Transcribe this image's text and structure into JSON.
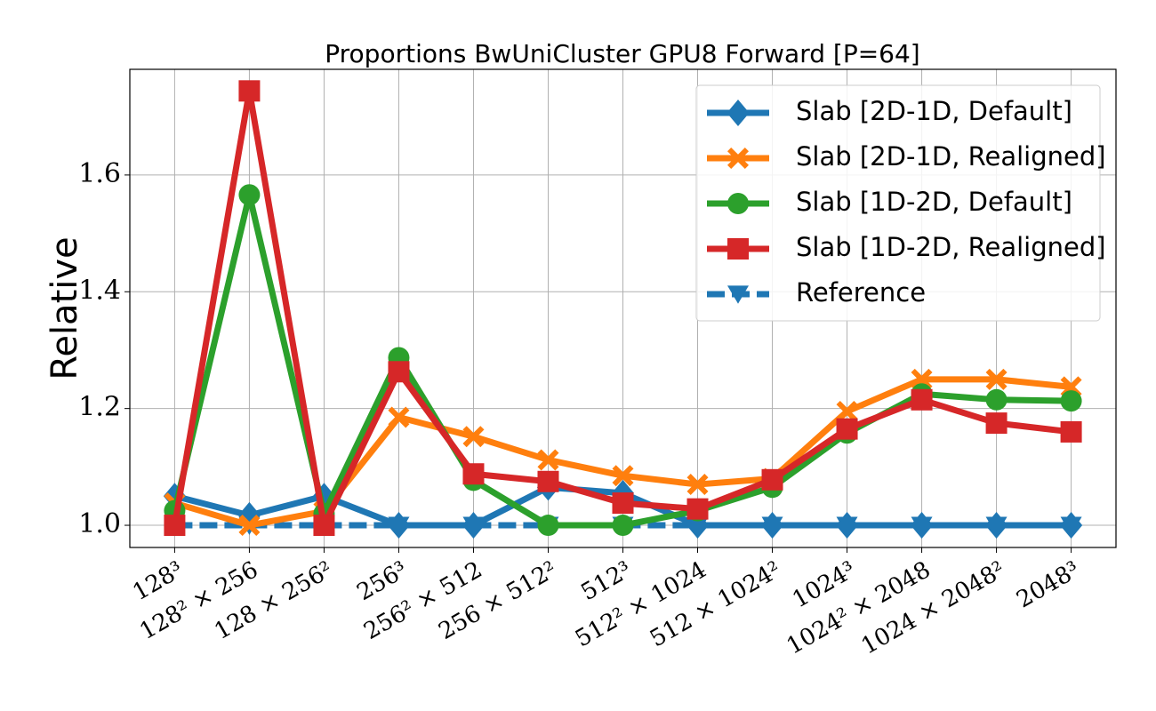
{
  "chart_data": {
    "type": "line",
    "title": "Proportions BwUniCluster GPU8 Forward [P=64]",
    "ylabel": "Relative",
    "categories": [
      "128³",
      "128² × 256",
      "128 × 256²",
      "256³",
      "256² × 512",
      "256 × 512²",
      "512³",
      "512² × 1024",
      "512 × 1024²",
      "1024³",
      "1024² × 2048",
      "1024 × 2048²",
      "2048³"
    ],
    "series": [
      {
        "name": "Reference",
        "color": "#1f77b4",
        "marker": "triangle-down",
        "linestyle": "dashed",
        "values": [
          1.0,
          1.0,
          1.0,
          1.0,
          1.0,
          1.0,
          1.0,
          1.0,
          1.0,
          1.0,
          1.0,
          1.0,
          1.0
        ]
      },
      {
        "name": "Slab [2D-1D, Default]",
        "color": "#1f77b4",
        "marker": "diamond",
        "linestyle": "solid",
        "values": [
          1.05,
          1.017,
          1.05,
          1.0,
          1.0,
          1.065,
          1.055,
          1.0,
          1.0,
          1.0,
          1.0,
          1.0,
          1.0
        ]
      },
      {
        "name": "Slab [2D-1D, Realigned]",
        "color": "#ff7f0e",
        "marker": "x",
        "linestyle": "solid",
        "values": [
          1.038,
          1.0,
          1.024,
          1.185,
          1.152,
          1.112,
          1.085,
          1.07,
          1.08,
          1.195,
          1.25,
          1.25,
          1.237
        ]
      },
      {
        "name": "Slab [1D-2D, Default]",
        "color": "#2ca02c",
        "marker": "circle",
        "linestyle": "solid",
        "values": [
          1.025,
          1.566,
          1.02,
          1.287,
          1.077,
          1.0,
          1.0,
          1.025,
          1.065,
          1.158,
          1.225,
          1.215,
          1.213
        ]
      },
      {
        "name": "Slab [1D-2D, Realigned]",
        "color": "#d62728",
        "marker": "square",
        "linestyle": "solid",
        "values": [
          1.0,
          1.744,
          1.0,
          1.263,
          1.088,
          1.075,
          1.038,
          1.028,
          1.078,
          1.165,
          1.215,
          1.175,
          1.16
        ]
      }
    ],
    "legend_order": [
      1,
      2,
      3,
      4,
      0
    ],
    "ylim": [
      0.962,
      1.781
    ],
    "yticks": [
      {
        "value": 1,
        "label": "1.0"
      },
      1.2,
      1.4,
      1.6
    ],
    "grid": true,
    "legend": "upper right"
  }
}
